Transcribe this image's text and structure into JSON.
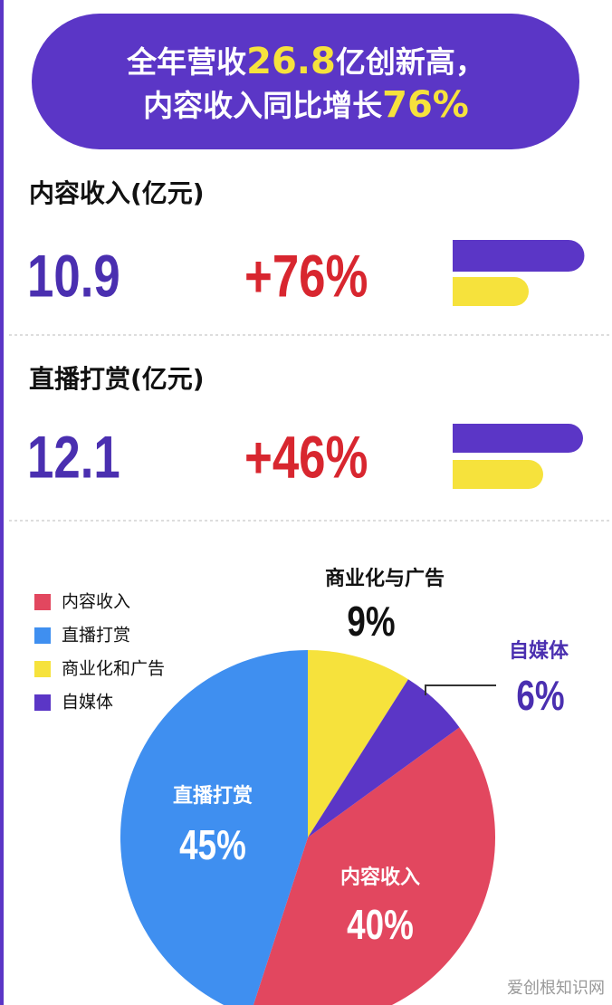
{
  "header": {
    "line1": [
      "全年营收",
      "26.8",
      "亿创新高，"
    ],
    "line2": [
      "内容收入同比增长",
      "76%"
    ]
  },
  "stats": [
    {
      "label": "内容收入(亿元)",
      "value": "10.9",
      "growth": "+76%"
    },
    {
      "label": "直播打赏(亿元)",
      "value": "12.1",
      "growth": "+46%"
    }
  ],
  "chart_data": {
    "type": "pie",
    "categories": [
      "内容收入",
      "直播打赏",
      "商业化和广告",
      "自媒体"
    ],
    "slice_labels": [
      "内容收入",
      "直播打赏",
      "商业化与广告",
      "自媒体"
    ],
    "values": [
      40,
      45,
      9,
      6
    ],
    "value_labels": [
      "40%",
      "45%",
      "9%",
      "6%"
    ],
    "colors": [
      "#e2475f",
      "#3f8ff0",
      "#f6e23c",
      "#5b36c6"
    ]
  },
  "watermark": "爱创根知识网"
}
